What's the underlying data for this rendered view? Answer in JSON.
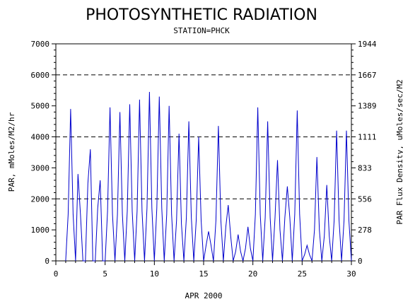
{
  "chart_data": {
    "type": "line",
    "title": "PHOTOSYNTHETIC RADIATION",
    "subtitle": "STATION=PHCK",
    "xlabel": "APR 2000",
    "ylabel_left": "PAR, mMoles/M2/hr",
    "ylabel_right": "PAR Flux Density, uMoles/sec/M2",
    "xlim": [
      0,
      30
    ],
    "ylim": [
      0,
      7000
    ],
    "x_ticks": [
      "0",
      "5",
      "10",
      "15",
      "20",
      "25",
      "30"
    ],
    "x_tick_values": [
      0,
      5,
      10,
      15,
      20,
      25,
      30
    ],
    "y_ticks_left": [
      "0",
      "1000",
      "2000",
      "3000",
      "4000",
      "5000",
      "6000",
      "7000"
    ],
    "y_tick_values_left": [
      0,
      1000,
      2000,
      3000,
      4000,
      5000,
      6000,
      7000
    ],
    "y_ticks_right": [
      "0",
      "278",
      "556",
      "833",
      "1111",
      "1389",
      "1667",
      "1944"
    ],
    "y_tick_values_right": [
      0,
      1000,
      2000,
      3000,
      4000,
      5000,
      6000,
      7000
    ],
    "grid_y": [
      2000,
      4000,
      6000
    ],
    "line_color": "#0000cc",
    "series": [
      {
        "x": [
          1.0,
          1.25,
          1.5,
          1.75,
          2.0,
          2.25,
          2.5,
          2.75,
          3.0,
          3.25,
          3.5,
          3.75,
          4.0,
          4.25,
          4.5,
          4.75,
          5.0,
          5.25,
          5.5,
          5.75,
          6.0,
          6.25,
          6.5,
          6.75,
          7.0,
          7.25,
          7.5,
          7.75,
          8.0,
          8.25,
          8.5,
          8.75,
          9.0,
          9.25,
          9.5,
          9.75,
          10.0,
          10.25,
          10.5,
          10.75,
          11.0,
          11.25,
          11.5,
          11.75,
          12.0,
          12.25,
          12.5,
          12.75,
          13.0,
          13.25,
          13.5,
          13.75,
          14.0,
          14.25,
          14.5,
          14.75,
          15.0,
          15.25,
          15.5,
          15.75,
          16.0,
          16.25,
          16.5,
          16.75,
          17.0,
          17.25,
          17.5,
          17.75,
          18.0,
          18.25,
          18.5,
          18.75,
          19.0,
          19.25,
          19.5,
          19.75,
          20.0,
          20.25,
          20.5,
          20.75,
          21.0,
          21.25,
          21.5,
          21.75,
          22.0,
          22.25,
          22.5,
          22.75,
          23.0,
          23.25,
          23.5,
          23.75,
          24.0,
          24.25,
          24.5,
          24.75,
          25.0,
          25.25,
          25.5,
          25.75,
          26.0,
          26.25,
          26.5,
          26.75,
          27.0,
          27.25,
          27.5,
          27.75,
          28.0,
          28.25,
          28.5,
          28.75,
          29.0,
          29.25,
          29.5,
          29.75,
          30.0
        ],
        "values": [
          0,
          1500,
          4900,
          1500,
          0,
          2800,
          1500,
          0,
          0,
          2500,
          3600,
          0,
          0,
          1700,
          2600,
          0,
          0,
          1600,
          4950,
          1500,
          0,
          1500,
          4800,
          1500,
          0,
          1600,
          5050,
          1600,
          0,
          1600,
          5200,
          1600,
          0,
          1700,
          5450,
          1700,
          0,
          1700,
          5300,
          1700,
          0,
          1500,
          5000,
          1500,
          0,
          1300,
          4100,
          1200,
          0,
          1400,
          4500,
          1400,
          0,
          1300,
          4000,
          1300,
          0,
          500,
          950,
          500,
          0,
          1300,
          4350,
          1300,
          0,
          1100,
          1800,
          800,
          0,
          300,
          850,
          300,
          0,
          400,
          1100,
          400,
          0,
          1500,
          4950,
          1500,
          0,
          1400,
          4500,
          1400,
          0,
          1400,
          3250,
          1000,
          0,
          1400,
          2400,
          1400,
          0,
          1500,
          4850,
          1500,
          0,
          200,
          500,
          200,
          0,
          1000,
          3350,
          1000,
          0,
          800,
          2450,
          800,
          0,
          1300,
          4200,
          1300,
          0,
          1300,
          4200,
          1300,
          0
        ]
      }
    ]
  }
}
